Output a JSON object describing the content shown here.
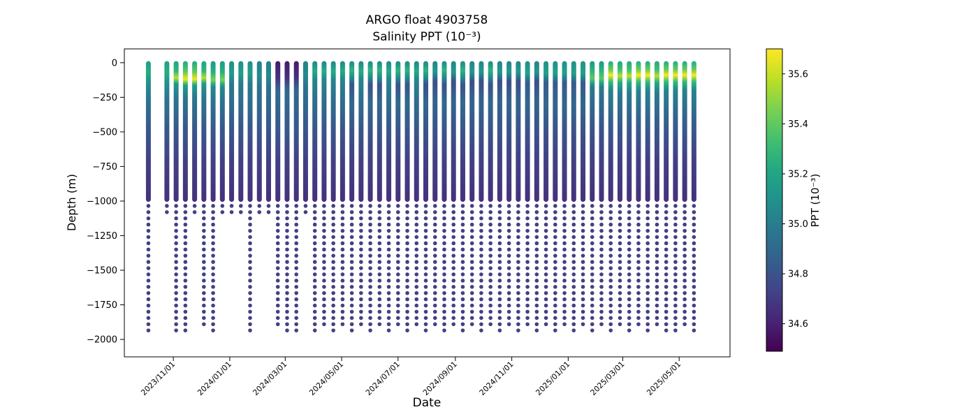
{
  "chart_data": {
    "type": "scatter",
    "title": "ARGO float 4903758",
    "subtitle": "Salinity PPT (10⁻³)",
    "xlabel": "Date",
    "ylabel": "Depth (m)",
    "colorbar_label": "PPT (10⁻³)",
    "colormap": "viridis",
    "colormap_stops": [
      "#440154",
      "#482475",
      "#414487",
      "#355f8d",
      "#2a788e",
      "#21918c",
      "#22a884",
      "#44bf70",
      "#7ad151",
      "#bddf26",
      "#fde725"
    ],
    "color_range": [
      34.49,
      35.7
    ],
    "colorbar_tick_values": [
      34.6,
      34.8,
      35.0,
      35.2,
      35.4,
      35.6
    ],
    "colorbar_tick_labels": [
      "34.6",
      "34.8",
      "35.0",
      "35.2",
      "35.4",
      "35.6"
    ],
    "x_tick_labels": [
      "2023/11/01",
      "2024/01/01",
      "2024/03/01",
      "2024/05/01",
      "2024/07/01",
      "2024/09/01",
      "2024/11/01",
      "2025/01/01",
      "2025/03/01",
      "2025/05/01"
    ],
    "y_tick_values": [
      0,
      -250,
      -500,
      -750,
      -1000,
      -1250,
      -1500,
      -1750,
      -2000
    ],
    "y_tick_labels": [
      "0",
      "−250",
      "−500",
      "−750",
      "−1000",
      "−1250",
      "−1500",
      "−1750",
      "−2000"
    ],
    "x_range": {
      "start": "2023/09/09",
      "end": "2025/06/25"
    },
    "y_range": [
      100,
      -2126
    ],
    "dense_profile": {
      "top_depth": 6,
      "bottom_depth": 988
    },
    "deep_dots": {
      "start_depth": 1035,
      "step": 45,
      "value": 34.72
    },
    "profile_shapes": {
      "autumn23": [
        [
          0,
          35.18
        ],
        [
          70,
          35.24
        ],
        [
          140,
          35.1
        ],
        [
          250,
          34.97
        ],
        [
          450,
          34.84
        ],
        [
          700,
          34.72
        ],
        [
          990,
          34.66
        ]
      ],
      "nov23_spot": [
        [
          0,
          35.22
        ],
        [
          60,
          35.28
        ],
        [
          110,
          35.58
        ],
        [
          155,
          35.12
        ],
        [
          250,
          34.97
        ],
        [
          450,
          34.84
        ],
        [
          700,
          34.72
        ],
        [
          990,
          34.66
        ]
      ],
      "nov23_bright": [
        [
          0,
          35.24
        ],
        [
          65,
          35.4
        ],
        [
          120,
          35.68
        ],
        [
          165,
          35.15
        ],
        [
          255,
          34.97
        ],
        [
          450,
          34.84
        ],
        [
          700,
          34.72
        ],
        [
          990,
          34.66
        ]
      ],
      "dec23": [
        [
          0,
          35.16
        ],
        [
          70,
          35.26
        ],
        [
          125,
          35.46
        ],
        [
          175,
          35.05
        ],
        [
          260,
          34.96
        ],
        [
          450,
          34.84
        ],
        [
          700,
          34.72
        ],
        [
          990,
          34.66
        ]
      ],
      "jan24": [
        [
          0,
          35.1
        ],
        [
          80,
          35.16
        ],
        [
          150,
          34.98
        ],
        [
          260,
          34.94
        ],
        [
          450,
          34.83
        ],
        [
          700,
          34.72
        ],
        [
          990,
          34.66
        ]
      ],
      "feb24": [
        [
          0,
          35.02
        ],
        [
          90,
          35.06
        ],
        [
          180,
          34.94
        ],
        [
          300,
          34.9
        ],
        [
          480,
          34.82
        ],
        [
          700,
          34.72
        ],
        [
          990,
          34.66
        ]
      ],
      "mar24_fresh": [
        [
          0,
          34.58
        ],
        [
          110,
          34.66
        ],
        [
          200,
          34.9
        ],
        [
          320,
          34.88
        ],
        [
          480,
          34.82
        ],
        [
          700,
          34.72
        ],
        [
          990,
          34.66
        ]
      ],
      "spring24": [
        [
          0,
          35.06
        ],
        [
          60,
          35.24
        ],
        [
          120,
          35.04
        ],
        [
          250,
          34.94
        ],
        [
          470,
          34.82
        ],
        [
          700,
          34.72
        ],
        [
          990,
          34.66
        ]
      ],
      "summer24": [
        [
          0,
          35.08
        ],
        [
          55,
          35.28
        ],
        [
          100,
          35.1
        ],
        [
          160,
          34.8
        ],
        [
          290,
          34.9
        ],
        [
          480,
          34.81
        ],
        [
          700,
          34.72
        ],
        [
          990,
          34.66
        ]
      ],
      "autumn24": [
        [
          0,
          35.04
        ],
        [
          65,
          35.14
        ],
        [
          135,
          34.78
        ],
        [
          280,
          34.88
        ],
        [
          480,
          34.8
        ],
        [
          700,
          34.72
        ],
        [
          990,
          34.66
        ]
      ],
      "winter25": [
        [
          0,
          35.1
        ],
        [
          75,
          35.18
        ],
        [
          145,
          34.84
        ],
        [
          300,
          34.89
        ],
        [
          500,
          34.79
        ],
        [
          700,
          34.72
        ],
        [
          990,
          34.66
        ]
      ],
      "late_jan25": [
        [
          0,
          35.16
        ],
        [
          65,
          35.28
        ],
        [
          115,
          35.4
        ],
        [
          175,
          34.98
        ],
        [
          300,
          34.9
        ],
        [
          500,
          34.79
        ],
        [
          700,
          34.72
        ],
        [
          990,
          34.66
        ]
      ],
      "spring25_spot": [
        [
          0,
          35.24
        ],
        [
          55,
          35.34
        ],
        [
          95,
          35.58
        ],
        [
          145,
          35.22
        ],
        [
          220,
          34.98
        ],
        [
          420,
          34.85
        ],
        [
          680,
          34.72
        ],
        [
          990,
          34.66
        ]
      ],
      "spring25_bright": [
        [
          0,
          35.26
        ],
        [
          55,
          35.44
        ],
        [
          90,
          35.7
        ],
        [
          135,
          35.32
        ],
        [
          205,
          35.02
        ],
        [
          420,
          34.86
        ],
        [
          680,
          34.72
        ],
        [
          990,
          34.66
        ]
      ]
    },
    "profiles": [
      {
        "date": "2023/10/05",
        "shape": "autumn23",
        "last": 1975
      },
      {
        "date": "2023/10/25",
        "shape": "autumn23",
        "last": 1080
      },
      {
        "date": "2023/11/04",
        "shape": "nov23_spot",
        "last": 1975
      },
      {
        "date": "2023/11/14",
        "shape": "nov23_bright",
        "last": 1975
      },
      {
        "date": "2023/11/24",
        "shape": "nov23_bright",
        "last": 1080
      },
      {
        "date": "2023/12/04",
        "shape": "nov23_spot",
        "last": 1930
      },
      {
        "date": "2023/12/14",
        "shape": "dec23",
        "last": 1975
      },
      {
        "date": "2023/12/24",
        "shape": "dec23",
        "last": 1080
      },
      {
        "date": "2024/01/03",
        "shape": "jan24",
        "last": 1080
      },
      {
        "date": "2024/01/13",
        "shape": "jan24",
        "last": 1080
      },
      {
        "date": "2024/01/23",
        "shape": "jan24",
        "last": 1975
      },
      {
        "date": "2024/02/02",
        "shape": "feb24",
        "last": 1080
      },
      {
        "date": "2024/02/12",
        "shape": "feb24",
        "last": 1080
      },
      {
        "date": "2024/02/22",
        "shape": "mar24_fresh",
        "last": 1930
      },
      {
        "date": "2024/03/03",
        "shape": "mar24_fresh",
        "last": 1975
      },
      {
        "date": "2024/03/13",
        "shape": "mar24_fresh",
        "last": 1975
      },
      {
        "date": "2024/03/23",
        "shape": "feb24",
        "last": 1080
      },
      {
        "date": "2024/04/02",
        "shape": "spring24",
        "last": 1975
      },
      {
        "date": "2024/04/12",
        "shape": "spring24",
        "last": 1930
      },
      {
        "date": "2024/04/22",
        "shape": "spring24",
        "last": 1975
      },
      {
        "date": "2024/05/02",
        "shape": "spring24",
        "last": 1930
      },
      {
        "date": "2024/05/12",
        "shape": "summer24",
        "last": 1975
      },
      {
        "date": "2024/05/22",
        "shape": "spring24",
        "last": 1930
      },
      {
        "date": "2024/06/01",
        "shape": "summer24",
        "last": 1975
      },
      {
        "date": "2024/06/11",
        "shape": "summer24",
        "last": 1930
      },
      {
        "date": "2024/06/21",
        "shape": "spring24",
        "last": 1975
      },
      {
        "date": "2024/07/01",
        "shape": "summer24",
        "last": 1930
      },
      {
        "date": "2024/07/11",
        "shape": "summer24",
        "last": 1975
      },
      {
        "date": "2024/07/21",
        "shape": "spring24",
        "last": 1930
      },
      {
        "date": "2024/07/31",
        "shape": "summer24",
        "last": 1975
      },
      {
        "date": "2024/08/10",
        "shape": "autumn24",
        "last": 1930
      },
      {
        "date": "2024/08/20",
        "shape": "summer24",
        "last": 1975
      },
      {
        "date": "2024/08/30",
        "shape": "autumn24",
        "last": 1930
      },
      {
        "date": "2024/09/09",
        "shape": "summer24",
        "last": 1975
      },
      {
        "date": "2024/09/19",
        "shape": "autumn24",
        "last": 1930
      },
      {
        "date": "2024/09/29",
        "shape": "autumn24",
        "last": 1975
      },
      {
        "date": "2024/10/09",
        "shape": "summer24",
        "last": 1930
      },
      {
        "date": "2024/10/19",
        "shape": "autumn24",
        "last": 1975
      },
      {
        "date": "2024/10/29",
        "shape": "autumn24",
        "last": 1930
      },
      {
        "date": "2024/11/08",
        "shape": "autumn24",
        "last": 1975
      },
      {
        "date": "2024/11/18",
        "shape": "winter25",
        "last": 1930
      },
      {
        "date": "2024/11/28",
        "shape": "autumn24",
        "last": 1975
      },
      {
        "date": "2024/12/08",
        "shape": "winter25",
        "last": 1930
      },
      {
        "date": "2024/12/18",
        "shape": "winter25",
        "last": 1975
      },
      {
        "date": "2024/12/28",
        "shape": "winter25",
        "last": 1930
      },
      {
        "date": "2025/01/07",
        "shape": "winter25",
        "last": 1975
      },
      {
        "date": "2025/01/17",
        "shape": "winter25",
        "last": 1930
      },
      {
        "date": "2025/01/27",
        "shape": "late_jan25",
        "last": 1975
      },
      {
        "date": "2025/02/06",
        "shape": "late_jan25",
        "last": 1930
      },
      {
        "date": "2025/02/16",
        "shape": "spring25_bright",
        "last": 1975
      },
      {
        "date": "2025/02/26",
        "shape": "spring25_spot",
        "last": 1930
      },
      {
        "date": "2025/03/08",
        "shape": "spring25_spot",
        "last": 1975
      },
      {
        "date": "2025/03/18",
        "shape": "spring25_bright",
        "last": 1930
      },
      {
        "date": "2025/03/28",
        "shape": "spring25_bright",
        "last": 1975
      },
      {
        "date": "2025/04/07",
        "shape": "spring25_spot",
        "last": 1930
      },
      {
        "date": "2025/04/17",
        "shape": "spring25_bright",
        "last": 1975
      },
      {
        "date": "2025/04/27",
        "shape": "spring25_bright",
        "last": 1975
      },
      {
        "date": "2025/05/07",
        "shape": "spring25_bright",
        "last": 1930
      },
      {
        "date": "2025/05/17",
        "shape": "spring25_bright",
        "last": 1975
      }
    ]
  }
}
